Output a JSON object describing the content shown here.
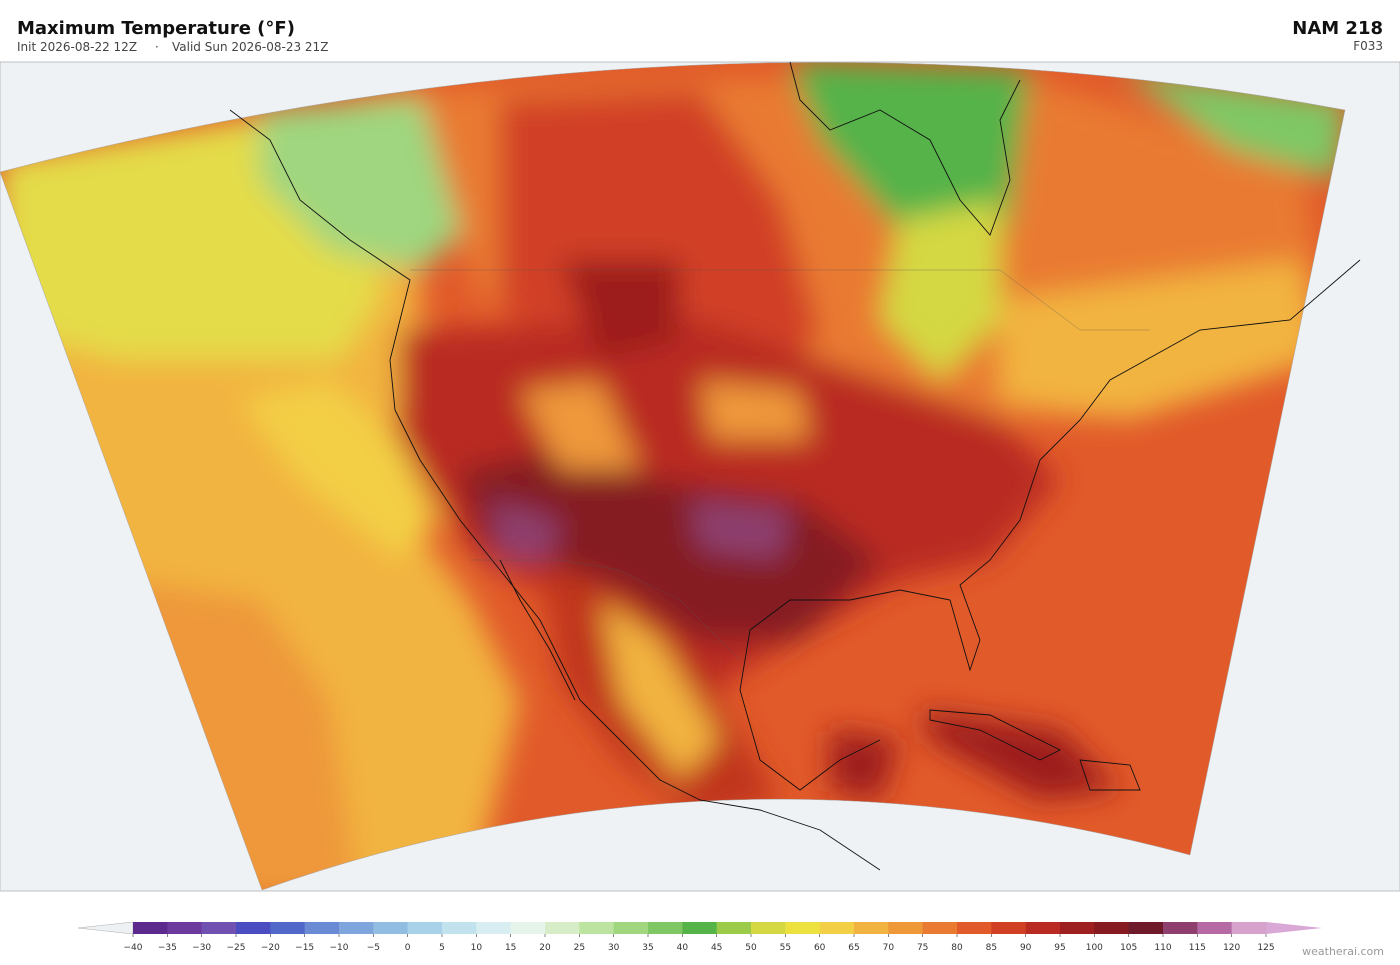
{
  "header": {
    "title": "Maximum Temperature  (°F)",
    "init": "Init 2026-08-22 12Z",
    "separator": "·",
    "valid": "Valid Sun 2026-08-23 21Z",
    "model": "NAM  218",
    "forecast_hour": "F033"
  },
  "colorbar": {
    "ticks": [
      {
        "value": -40,
        "label": "−40"
      },
      {
        "value": -35,
        "label": "−35"
      },
      {
        "value": -30,
        "label": "−30"
      },
      {
        "value": -25,
        "label": "−25"
      },
      {
        "value": -20,
        "label": "−20"
      },
      {
        "value": -15,
        "label": "−15"
      },
      {
        "value": -10,
        "label": "−10"
      },
      {
        "value": -5,
        "label": "−5"
      },
      0,
      5,
      10,
      15,
      20,
      25,
      30,
      35,
      40,
      45,
      50,
      55,
      60,
      65,
      70,
      75,
      80,
      85,
      90,
      95,
      100,
      105,
      110,
      115,
      120,
      125
    ],
    "colors": [
      "#5b2a8c",
      "#6b3a9c",
      "#7050b0",
      "#4a4cbf",
      "#5068c8",
      "#6a8ad4",
      "#7fa6dc",
      "#92bde2",
      "#a9d2e8",
      "#c2e2ee",
      "#d8eef2",
      "#e6f4ec",
      "#d6edc8",
      "#bde3a0",
      "#9fd67f",
      "#7fc765",
      "#55b34a",
      "#9ccb4a",
      "#d4d843",
      "#ece13f",
      "#f3cf45",
      "#f2b441",
      "#ee983a",
      "#e97a31",
      "#e15a2a",
      "#d13f25",
      "#b92b22",
      "#9d1f1f",
      "#851a20",
      "#6e1a2a",
      "#8e3f6e",
      "#b66aa4",
      "#d5a2cc"
    ],
    "under_color": "#eef1f4",
    "over_color": "#d9a8d6"
  },
  "footer": {
    "credit": "weatherai.com"
  }
}
